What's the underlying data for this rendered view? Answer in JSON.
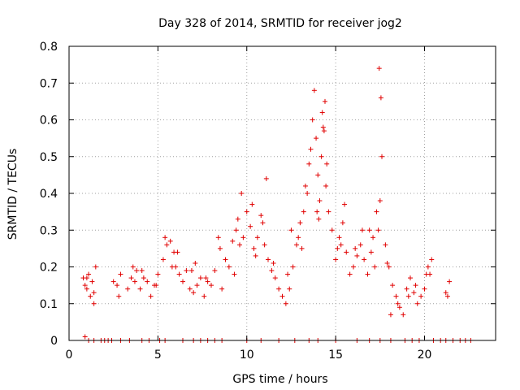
{
  "chart_data": {
    "type": "scatter",
    "title": "Day 328 of 2014, SRMTID for receiver jog2",
    "xlabel": "GPS time / hours",
    "ylabel": "SRMTID / TECUs",
    "xlim": [
      0,
      24
    ],
    "ylim": [
      0,
      0.8
    ],
    "grid": true,
    "marker": "+",
    "color": "#e00000",
    "xticks": [
      "0",
      "5",
      "10",
      "15",
      "20"
    ],
    "yticks": [
      "0",
      "0.1",
      "0.2",
      "0.3",
      "0.4",
      "0.5",
      "0.6",
      "0.7",
      "0.8"
    ],
    "series": [
      {
        "name": "SRMTID",
        "x": [
          0.8,
          0.9,
          1.0,
          1.1,
          1.2,
          1.3,
          1.4,
          1.5,
          2.7,
          2.8,
          2.9,
          3.5,
          3.6,
          3.7,
          3.8,
          4.0,
          4.2,
          4.4,
          4.6,
          4.8,
          5.0,
          5.3,
          5.5,
          5.7,
          5.9,
          6.0,
          6.2,
          6.4,
          6.6,
          6.8,
          7.0,
          7.2,
          7.4,
          7.6,
          7.8,
          8.0,
          8.2,
          8.5,
          8.8,
          9.0,
          9.2,
          9.4,
          9.6,
          9.8,
          10.0,
          10.2,
          10.4,
          10.6,
          10.8,
          11.0,
          11.2,
          11.4,
          11.6,
          11.8,
          12.0,
          12.2,
          12.4,
          12.6,
          12.8,
          13.0,
          13.2,
          13.4,
          13.6,
          13.7,
          13.8,
          13.9,
          14.0,
          14.1,
          14.2,
          14.3,
          14.4,
          14.5,
          14.6,
          14.8,
          15.0,
          15.2,
          15.4,
          15.6,
          15.8,
          16.0,
          16.2,
          16.4,
          16.6,
          16.8,
          17.0,
          17.2,
          17.4,
          17.5,
          17.6,
          17.8,
          18.0,
          18.2,
          18.4,
          18.6,
          18.8,
          19.0,
          19.2,
          19.4,
          19.6,
          19.8,
          20.0,
          20.2,
          20.4,
          21.2,
          21.4,
          5.4,
          6.1,
          7.1,
          8.4,
          9.5,
          10.3,
          11.1,
          12.5,
          13.3,
          14.25,
          15.5,
          16.5,
          17.3,
          18.1,
          19.1,
          20.1,
          9.7,
          10.9,
          12.9,
          13.5,
          14.05,
          14.35,
          15.3,
          16.9,
          17.45,
          17.55,
          1.0,
          1.4,
          2.5,
          3.3,
          4.1,
          4.9,
          5.8,
          6.9,
          7.7,
          8.6,
          9.3,
          10.5,
          11.5,
          12.3,
          13.1,
          13.95,
          14.45,
          15.1,
          16.1,
          17.1,
          17.9,
          18.5,
          19.5,
          20.3,
          21.3,
          0.9,
          1.1,
          1.4,
          1.8,
          2.0,
          2.2,
          2.4,
          2.9,
          3.4,
          4.1,
          4.5,
          5.1,
          5.4,
          6.4,
          7.0,
          7.4,
          7.8,
          8.2,
          8.6,
          10.0,
          10.8,
          11.8,
          12.7,
          13.5,
          14.0,
          15.0,
          16.2,
          16.9,
          17.5,
          18.1,
          18.9,
          19.3,
          19.7,
          20.5,
          20.9,
          21.2,
          21.6,
          22.0,
          22.3,
          22.6
        ],
        "y": [
          0.17,
          0.15,
          0.14,
          0.18,
          0.12,
          0.16,
          0.1,
          0.2,
          0.15,
          0.12,
          0.18,
          0.17,
          0.2,
          0.16,
          0.19,
          0.14,
          0.17,
          0.16,
          0.12,
          0.15,
          0.18,
          0.22,
          0.26,
          0.27,
          0.24,
          0.2,
          0.18,
          0.16,
          0.19,
          0.14,
          0.13,
          0.15,
          0.17,
          0.12,
          0.16,
          0.15,
          0.19,
          0.25,
          0.22,
          0.2,
          0.27,
          0.3,
          0.26,
          0.28,
          0.35,
          0.31,
          0.25,
          0.28,
          0.34,
          0.26,
          0.22,
          0.19,
          0.17,
          0.14,
          0.12,
          0.1,
          0.14,
          0.2,
          0.26,
          0.32,
          0.35,
          0.4,
          0.52,
          0.6,
          0.68,
          0.55,
          0.45,
          0.38,
          0.5,
          0.58,
          0.65,
          0.48,
          0.35,
          0.3,
          0.22,
          0.28,
          0.32,
          0.24,
          0.18,
          0.2,
          0.23,
          0.26,
          0.22,
          0.18,
          0.24,
          0.2,
          0.3,
          0.38,
          0.5,
          0.26,
          0.2,
          0.15,
          0.12,
          0.09,
          0.07,
          0.14,
          0.17,
          0.13,
          0.1,
          0.12,
          0.14,
          0.2,
          0.22,
          0.13,
          0.16,
          0.28,
          0.24,
          0.21,
          0.28,
          0.33,
          0.37,
          0.44,
          0.3,
          0.42,
          0.62,
          0.37,
          0.3,
          0.35,
          0.07,
          0.12,
          0.18,
          0.4,
          0.32,
          0.28,
          0.48,
          0.33,
          0.57,
          0.26,
          0.3,
          0.74,
          0.66,
          0.17,
          0.13,
          0.16,
          0.14,
          0.19,
          0.15,
          0.2,
          0.19,
          0.17,
          0.14,
          0.18,
          0.23,
          0.21,
          0.18,
          0.25,
          0.35,
          0.42,
          0.25,
          0.25,
          0.28,
          0.21,
          0.1,
          0.15,
          0.18,
          0.12,
          0.01,
          0.0,
          0.0,
          0.0,
          0.0,
          0.0,
          0.0,
          0.0,
          0.0,
          0.0,
          0.0,
          0.0,
          0.0,
          0.0,
          0.0,
          0.0,
          0.0,
          0.0,
          0.0,
          0.0,
          0.0,
          0.0,
          0.0,
          0.0,
          0.0,
          0.0,
          0.0,
          0.0,
          0.0,
          0.0,
          0.0,
          0.0,
          0.0,
          0.0,
          0.0,
          0.0,
          0.0,
          0.0,
          0.0,
          0.0
        ]
      }
    ]
  }
}
